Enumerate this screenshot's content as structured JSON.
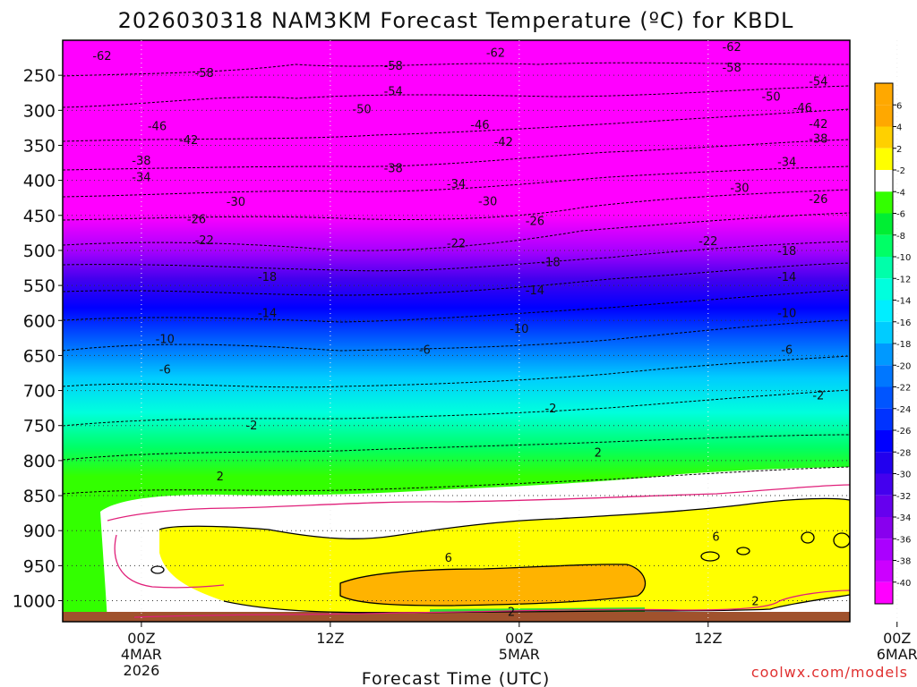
{
  "chart_data": {
    "type": "heatmap",
    "title": "2026030318 NAM3KM Forecast Temperature (ºC) for KBDL",
    "xlabel": "Forecast Time (UTC)",
    "ylabel": "",
    "credit": "coolwx.com/models",
    "x_ticks": [
      {
        "line1": "00Z",
        "line2": "4MAR",
        "line3": "2026"
      },
      {
        "line1": "12Z",
        "line2": "",
        "line3": ""
      },
      {
        "line1": "00Z",
        "line2": "5MAR",
        "line3": ""
      },
      {
        "line1": "12Z",
        "line2": "",
        "line3": ""
      },
      {
        "line1": "00Z",
        "line2": "6MAR",
        "line3": ""
      }
    ],
    "x_range_hours": [
      -5,
      45
    ],
    "x_tick_hours": [
      0,
      12,
      24,
      36,
      48
    ],
    "y_ticks": [
      "250",
      "300",
      "350",
      "400",
      "450",
      "500",
      "550",
      "600",
      "650",
      "700",
      "750",
      "800",
      "850",
      "900",
      "950",
      "1000"
    ],
    "y_range_hpa": [
      200,
      1030
    ],
    "legend": {
      "placement": "right",
      "labels": [
        "6",
        "4",
        "2",
        "-2",
        "-4",
        "-6",
        "-8",
        "-10",
        "-12",
        "-14",
        "-16",
        "-18",
        "-20",
        "-22",
        "-24",
        "-26",
        "-28",
        "-30",
        "-32",
        "-34",
        "-36",
        "-38",
        "-40"
      ],
      "colors": [
        "#ffa800",
        "#ffd000",
        "#ffff00",
        "#ffffff",
        "#33ff00",
        "#00ee33",
        "#00ff66",
        "#00ffaa",
        "#00ffdd",
        "#00eeff",
        "#00ccff",
        "#0099ff",
        "#0077ff",
        "#0055ff",
        "#0033ff",
        "#0000ff",
        "#2200ee",
        "#4400ee",
        "#6600ee",
        "#8800ee",
        "#aa00ff",
        "#cc00ff",
        "#ff00ff"
      ]
    },
    "contour_labels": [
      {
        "text": "-62",
        "hour": -2.5,
        "hpa": 222
      },
      {
        "text": "-62",
        "hour": 22.5,
        "hpa": 217
      },
      {
        "text": "-62",
        "hour": 37.5,
        "hpa": 209
      },
      {
        "text": "-58",
        "hour": 4,
        "hpa": 246
      },
      {
        "text": "-58",
        "hour": 16,
        "hpa": 236
      },
      {
        "text": "-58",
        "hour": 37.5,
        "hpa": 238
      },
      {
        "text": "-54",
        "hour": 16,
        "hpa": 272
      },
      {
        "text": "-54",
        "hour": 43,
        "hpa": 258
      },
      {
        "text": "-50",
        "hour": 14,
        "hpa": 298
      },
      {
        "text": "-50",
        "hour": 40,
        "hpa": 280
      },
      {
        "text": "-46",
        "hour": 1,
        "hpa": 322
      },
      {
        "text": "-46",
        "hour": 21.5,
        "hpa": 320
      },
      {
        "text": "-46",
        "hour": 42,
        "hpa": 296
      },
      {
        "text": "-42",
        "hour": 3,
        "hpa": 342
      },
      {
        "text": "-42",
        "hour": 23,
        "hpa": 344
      },
      {
        "text": "-42",
        "hour": 43,
        "hpa": 319
      },
      {
        "text": "-38",
        "hour": 0,
        "hpa": 371
      },
      {
        "text": "-38",
        "hour": 16,
        "hpa": 382
      },
      {
        "text": "-38",
        "hour": 43,
        "hpa": 340
      },
      {
        "text": "-34",
        "hour": 0,
        "hpa": 395
      },
      {
        "text": "-34",
        "hour": 20,
        "hpa": 404
      },
      {
        "text": "-34",
        "hour": 41,
        "hpa": 373
      },
      {
        "text": "-30",
        "hour": 6,
        "hpa": 430
      },
      {
        "text": "-30",
        "hour": 22,
        "hpa": 429
      },
      {
        "text": "-30",
        "hour": 38,
        "hpa": 410
      },
      {
        "text": "-26",
        "hour": 3.5,
        "hpa": 455
      },
      {
        "text": "-26",
        "hour": 25,
        "hpa": 457
      },
      {
        "text": "-26",
        "hour": 43,
        "hpa": 426
      },
      {
        "text": "-22",
        "hour": 4,
        "hpa": 485
      },
      {
        "text": "-22",
        "hour": 20,
        "hpa": 489
      },
      {
        "text": "-22",
        "hour": 36,
        "hpa": 486
      },
      {
        "text": "-18",
        "hour": 8,
        "hpa": 537
      },
      {
        "text": "-18",
        "hour": 26,
        "hpa": 516
      },
      {
        "text": "-18",
        "hour": 41,
        "hpa": 500
      },
      {
        "text": "-14",
        "hour": 8,
        "hpa": 589
      },
      {
        "text": "-14",
        "hour": 25,
        "hpa": 556
      },
      {
        "text": "-14",
        "hour": 41,
        "hpa": 537
      },
      {
        "text": "-10",
        "hour": 1.5,
        "hpa": 626
      },
      {
        "text": "-10",
        "hour": 24,
        "hpa": 611
      },
      {
        "text": "-10",
        "hour": 41,
        "hpa": 589
      },
      {
        "text": "-6",
        "hour": 1.5,
        "hpa": 669
      },
      {
        "text": "-6",
        "hour": 18,
        "hpa": 641
      },
      {
        "text": "-6",
        "hour": 41,
        "hpa": 641
      },
      {
        "text": "-2",
        "hour": 7,
        "hpa": 749
      },
      {
        "text": "-2",
        "hour": 26,
        "hpa": 725
      },
      {
        "text": "-2",
        "hour": 43,
        "hpa": 706
      },
      {
        "text": "2",
        "hour": 5,
        "hpa": 822
      },
      {
        "text": "2",
        "hour": 29,
        "hpa": 788
      },
      {
        "text": "2",
        "hour": 39,
        "hpa": 1000
      },
      {
        "text": "2",
        "hour": 23.5,
        "hpa": 1015
      },
      {
        "text": "6",
        "hour": 19.5,
        "hpa": 938
      },
      {
        "text": "6",
        "hour": 36.5,
        "hpa": 908
      }
    ]
  }
}
